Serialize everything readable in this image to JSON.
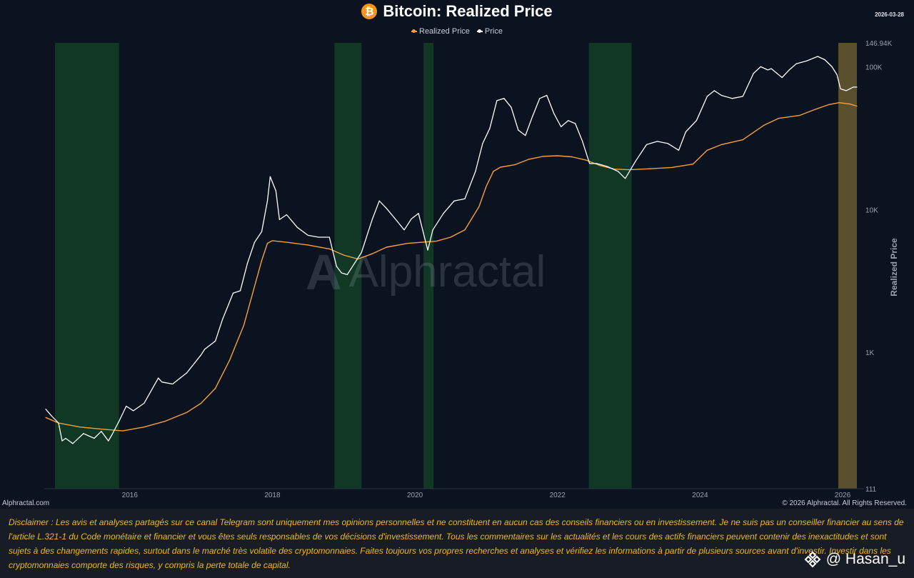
{
  "header": {
    "title": "Bitcoin: Realized Price",
    "date": "2026-03-28",
    "logo_glyph": "₿"
  },
  "legend": {
    "items": [
      {
        "label": "Realized Price",
        "color": "#f5a03a"
      },
      {
        "label": "Price",
        "color": "#ffffff"
      }
    ]
  },
  "watermark": {
    "text": "Alphractal",
    "logo_glyph": "A"
  },
  "chart_data": {
    "type": "line",
    "title": "Bitcoin: Realized Price",
    "ylabel": "Realized Price",
    "yscale": "log",
    "ylim": [
      111,
      146940
    ],
    "xlim": [
      2014.8,
      2026.3
    ],
    "x_ticks": [
      2016,
      2018,
      2020,
      2022,
      2024,
      2026
    ],
    "x_tick_labels": [
      "2016",
      "2018",
      "2020",
      "2022",
      "2024",
      "2026"
    ],
    "y_ticks": [
      111,
      1000,
      10000,
      100000,
      146940
    ],
    "y_tick_labels": [
      "111",
      "1K",
      "10K",
      "100K",
      "146.94K"
    ],
    "highlight_bands": [
      {
        "start": 2014.95,
        "end": 2015.85,
        "color": "#123a26"
      },
      {
        "start": 2018.87,
        "end": 2019.25,
        "color": "#123a26"
      },
      {
        "start": 2020.12,
        "end": 2020.26,
        "color": "#123a26"
      },
      {
        "start": 2022.44,
        "end": 2023.04,
        "color": "#123a26"
      },
      {
        "start": 2025.94,
        "end": 2026.2,
        "color": "#6a5a30"
      }
    ],
    "series": [
      {
        "name": "Realized Price",
        "color": "#f5a03a",
        "x": [
          2014.82,
          2015.0,
          2015.3,
          2015.6,
          2015.9,
          2016.2,
          2016.5,
          2016.8,
          2017.0,
          2017.2,
          2017.4,
          2017.6,
          2017.75,
          2017.85,
          2017.93,
          2018.0,
          2018.2,
          2018.5,
          2018.8,
          2019.0,
          2019.2,
          2019.4,
          2019.6,
          2019.9,
          2020.1,
          2020.3,
          2020.5,
          2020.7,
          2020.9,
          2021.0,
          2021.1,
          2021.2,
          2021.4,
          2021.6,
          2021.8,
          2022.0,
          2022.2,
          2022.4,
          2022.6,
          2022.8,
          2023.0,
          2023.3,
          2023.6,
          2023.9,
          2024.1,
          2024.3,
          2024.6,
          2024.9,
          2025.1,
          2025.4,
          2025.6,
          2025.8,
          2025.95,
          2026.1,
          2026.2
        ],
        "y": [
          350,
          320,
          300,
          290,
          282,
          300,
          330,
          380,
          440,
          560,
          880,
          1550,
          2900,
          4400,
          5800,
          6050,
          5900,
          5650,
          5300,
          4800,
          4500,
          4900,
          5450,
          5800,
          5900,
          6000,
          6400,
          7200,
          10500,
          14500,
          18500,
          19800,
          20600,
          22500,
          23600,
          23800,
          23400,
          22200,
          20300,
          19200,
          19000,
          19300,
          19700,
          20800,
          26000,
          28500,
          30800,
          39000,
          43500,
          45700,
          50000,
          54200,
          56000,
          54800,
          53000
        ]
      },
      {
        "name": "Price",
        "color": "#ffffff",
        "x": [
          2014.82,
          2014.9,
          2015.0,
          2015.05,
          2015.1,
          2015.2,
          2015.35,
          2015.5,
          2015.6,
          2015.7,
          2015.75,
          2015.85,
          2015.95,
          2016.05,
          2016.2,
          2016.4,
          2016.45,
          2016.6,
          2016.8,
          2017.0,
          2017.05,
          2017.2,
          2017.3,
          2017.45,
          2017.55,
          2017.65,
          2017.75,
          2017.85,
          2017.93,
          2017.97,
          2018.05,
          2018.1,
          2018.2,
          2018.35,
          2018.5,
          2018.65,
          2018.8,
          2018.9,
          2018.97,
          2019.05,
          2019.25,
          2019.4,
          2019.5,
          2019.6,
          2019.75,
          2019.85,
          2019.95,
          2020.05,
          2020.13,
          2020.18,
          2020.25,
          2020.4,
          2020.55,
          2020.7,
          2020.85,
          2020.95,
          2021.05,
          2021.15,
          2021.25,
          2021.35,
          2021.45,
          2021.55,
          2021.65,
          2021.75,
          2021.85,
          2021.95,
          2022.05,
          2022.15,
          2022.25,
          2022.35,
          2022.45,
          2022.55,
          2022.7,
          2022.85,
          2022.95,
          2023.1,
          2023.25,
          2023.4,
          2023.55,
          2023.7,
          2023.8,
          2023.95,
          2024.1,
          2024.2,
          2024.3,
          2024.45,
          2024.6,
          2024.75,
          2024.85,
          2024.95,
          2025.0,
          2025.15,
          2025.25,
          2025.35,
          2025.5,
          2025.65,
          2025.75,
          2025.85,
          2025.92,
          2025.97,
          2026.05,
          2026.15,
          2026.2
        ],
        "y": [
          400,
          360,
          320,
          240,
          250,
          230,
          270,
          250,
          280,
          240,
          265,
          330,
          420,
          390,
          440,
          660,
          620,
          600,
          720,
          960,
          1050,
          1200,
          1700,
          2600,
          2700,
          4200,
          5900,
          7000,
          11500,
          17000,
          13500,
          8500,
          9200,
          7500,
          6600,
          6400,
          6400,
          4000,
          3600,
          3500,
          5000,
          8500,
          11500,
          10200,
          8300,
          7200,
          8600,
          9400,
          6500,
          5200,
          7200,
          9400,
          11500,
          11900,
          18500,
          29000,
          37000,
          58000,
          60000,
          52000,
          36000,
          33000,
          45000,
          60000,
          63000,
          47000,
          38000,
          42000,
          40000,
          30000,
          21000,
          21000,
          20000,
          18500,
          16500,
          22000,
          28500,
          30000,
          29000,
          26000,
          35000,
          42000,
          62000,
          68000,
          63000,
          60000,
          62000,
          90000,
          100000,
          95000,
          97000,
          84000,
          95000,
          105000,
          110000,
          118000,
          112000,
          100000,
          88000,
          70000,
          68000,
          72000,
          72000
        ]
      }
    ]
  },
  "footer": {
    "site": "Alphractal.com",
    "copyright": "© 2026 Alphractal. All Rights Reserved."
  },
  "disclaimer": {
    "text": "Disclaimer : Les avis et analyses partagés sur ce canal Telegram sont uniquement mes opinions personnelles et ne constituent en aucun cas des conseils financiers ou en investissement. Je ne suis pas un conseiller financier au sens de l'article L.321-1 du Code monétaire et financier et vous êtes seuls responsables de vos décisions d'investissement. Tous les commentaires sur les actualités et les cours des actifs financiers peuvent contenir des inexactitudes et sont sujets à des changements rapides, surtout dans le marché très volatile des cryptomonnaies. Faites toujours vos propres recherches et analyses et vérifiez les informations à partir de plusieurs sources avant d'investir. Investir dans les cryptomonnaies comporte des risques, y compris la perte totale de capital."
  },
  "handle": {
    "text": "@ Hasan_u"
  },
  "colors": {
    "background": "#0b1220",
    "accent": "#f0b90b",
    "bitcoin": "#f7931a"
  }
}
